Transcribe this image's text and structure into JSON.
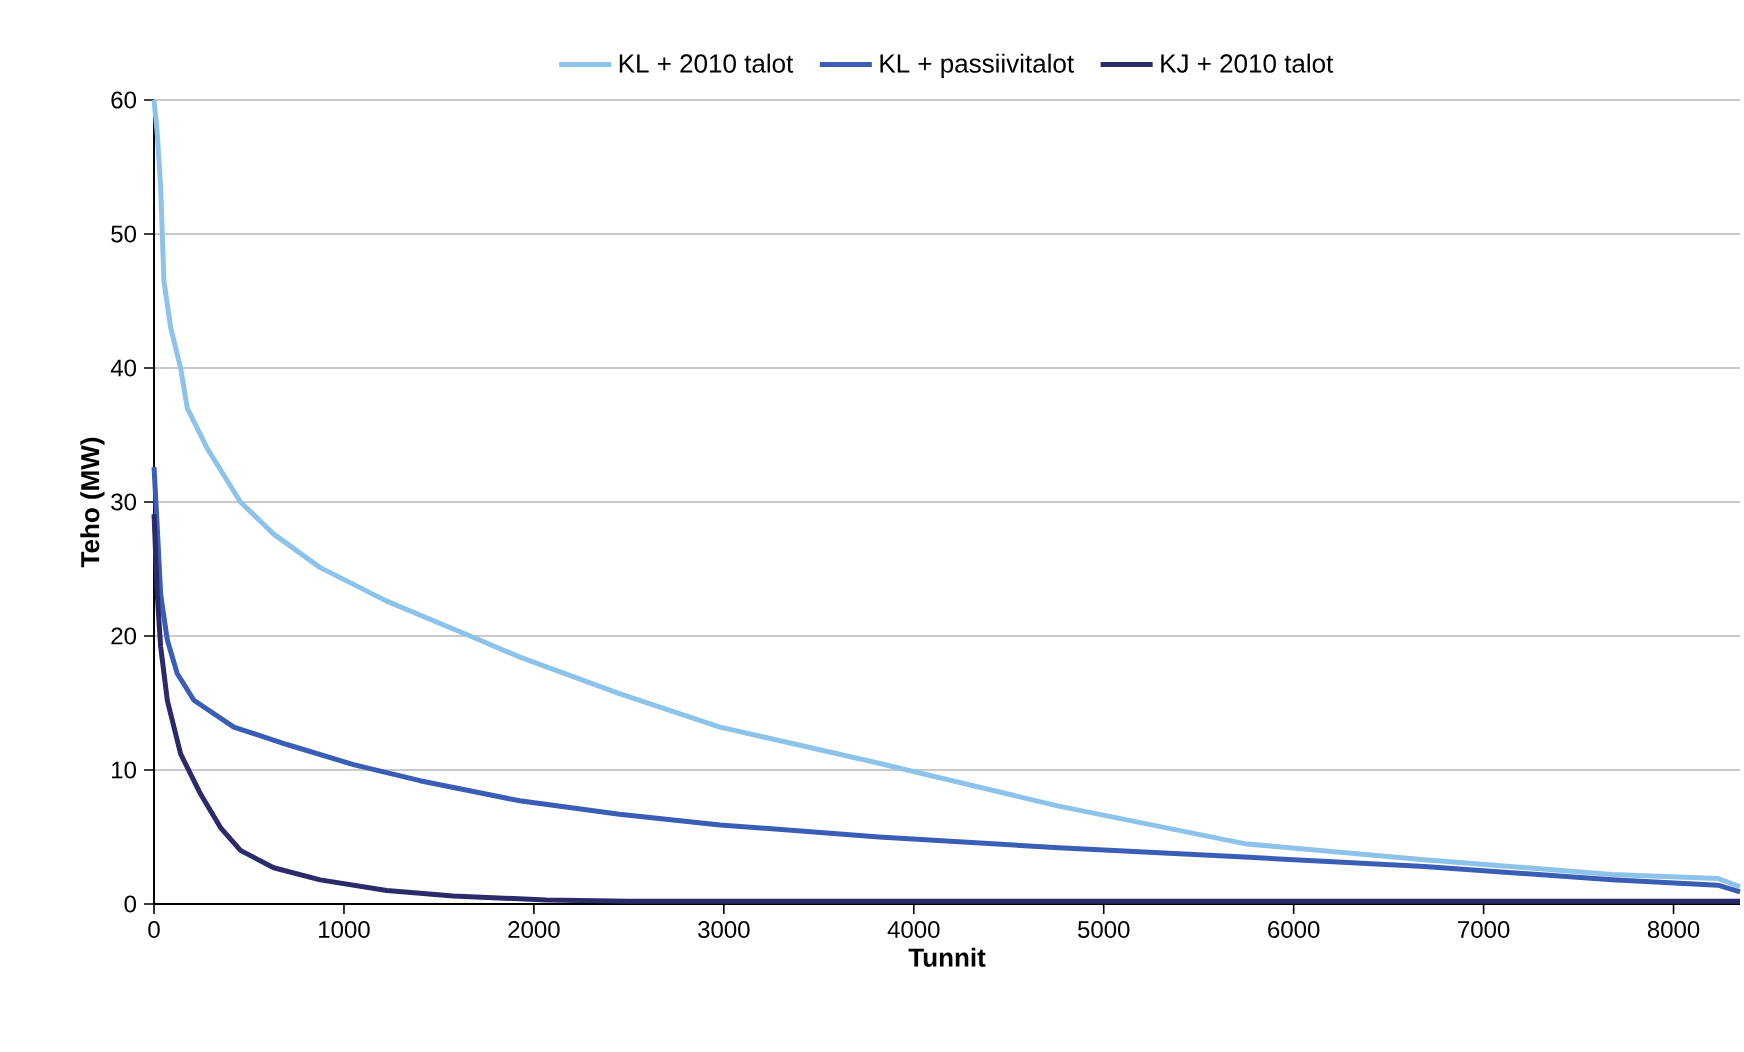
{
  "chart_data": {
    "type": "line",
    "xlabel": "Tunnit",
    "ylabel": "Teho (MW)",
    "xlim": [
      0,
      8350
    ],
    "xticks": [
      0,
      1000,
      2000,
      3000,
      4000,
      5000,
      6000,
      7000,
      8000
    ],
    "ylim": [
      0,
      60
    ],
    "yticks": [
      0,
      10,
      20,
      30,
      40,
      50,
      60
    ],
    "grid": "y",
    "legend": "top",
    "marker": "none",
    "line_style": "solid",
    "series": [
      {
        "name": "KL + 2010 talot",
        "color": "#8dc3ea",
        "x": [
          0,
          17,
          35,
          52,
          88,
          140,
          175,
          280,
          455,
          630,
          875,
          1225,
          1680,
          1930,
          2450,
          2980,
          3817,
          4763,
          5741,
          6688,
          7676,
          8233,
          8350
        ],
        "values": [
          60,
          57.5,
          53.5,
          46.5,
          43,
          40,
          37,
          34,
          30,
          27.6,
          25.1,
          22.6,
          19.9,
          18.4,
          15.7,
          13.2,
          10.5,
          7.3,
          4.5,
          3.3,
          2.2,
          1.9,
          1.3
        ]
      },
      {
        "name": "KL + passiivitalot",
        "color": "#3a5db5",
        "x": [
          0,
          17,
          35,
          70,
          122,
          210,
          420,
          700,
          1050,
          1400,
          1925,
          2450,
          2980,
          3817,
          4763,
          5741,
          6688,
          7676,
          8233,
          8350
        ],
        "values": [
          32.6,
          28.1,
          23.1,
          19.7,
          17.2,
          15.2,
          13.2,
          11.9,
          10.4,
          9.2,
          7.7,
          6.7,
          5.9,
          5.0,
          4.2,
          3.5,
          2.8,
          1.8,
          1.4,
          0.9
        ]
      },
      {
        "name": "KJ + 2010 talot",
        "color": "#2b2a6b",
        "x": [
          0,
          17,
          35,
          70,
          140,
          245,
          350,
          455,
          630,
          875,
          1225,
          1575,
          2065,
          2500,
          8350
        ],
        "values": [
          29.1,
          23.1,
          19.2,
          15.2,
          11.2,
          8.2,
          5.7,
          4.0,
          2.7,
          1.8,
          1.0,
          0.6,
          0.3,
          0.2,
          0.2
        ]
      }
    ]
  }
}
